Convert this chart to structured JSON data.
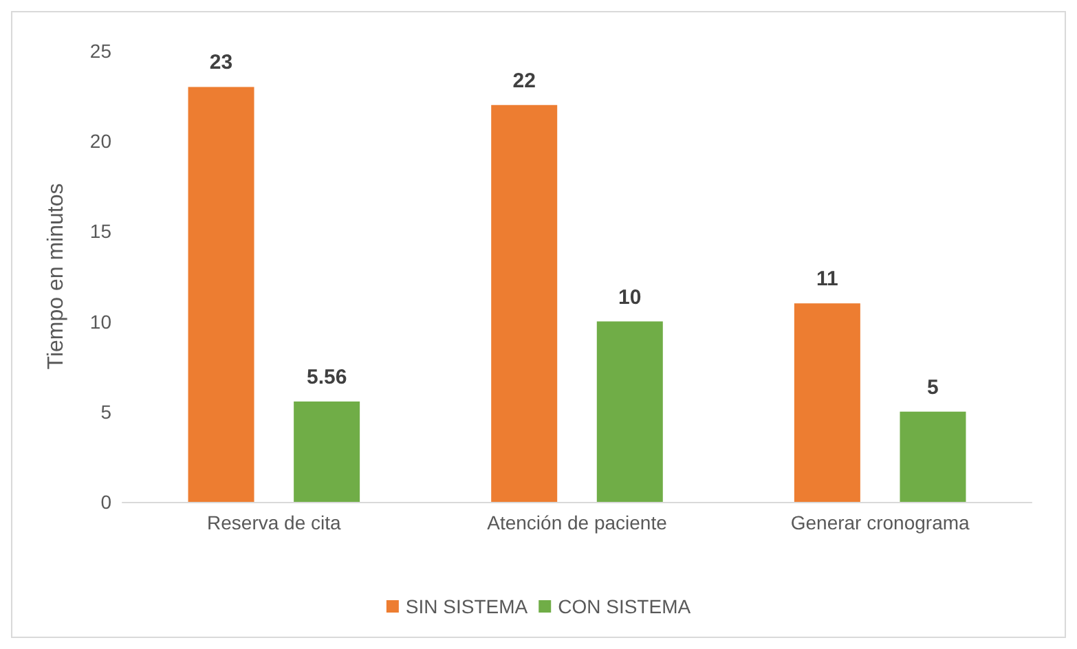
{
  "chart_data": {
    "type": "bar",
    "ylabel": "Tiempo en minutos",
    "categories": [
      "Reserva de cita",
      "Atención de paciente",
      "Generar cronograma"
    ],
    "series": [
      {
        "name": "SIN SISTEMA",
        "color": "#ed7d31",
        "values": [
          23,
          22,
          11
        ]
      },
      {
        "name": "CON SISTEMA",
        "color": "#70ad47",
        "values": [
          5.56,
          10,
          5
        ]
      }
    ],
    "ylim": [
      0,
      25
    ],
    "yticks": [
      0,
      5,
      10,
      15,
      20,
      25
    ],
    "grid": false,
    "legend": "bottom",
    "data_labels": true
  }
}
